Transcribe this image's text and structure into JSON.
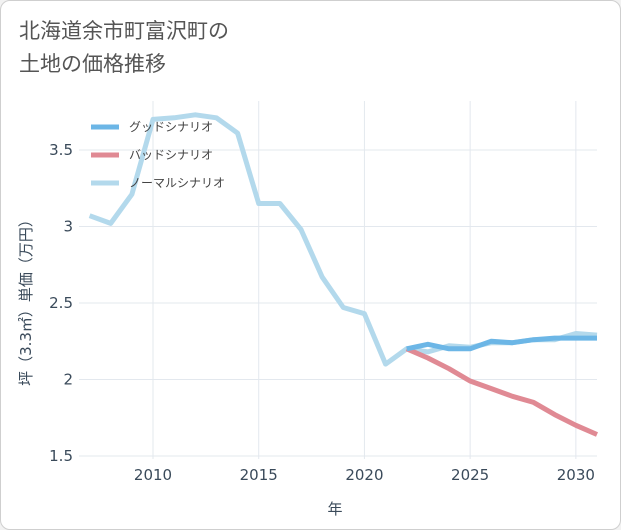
{
  "title_lines": [
    "北海道余市町富沢町の",
    "土地の価格推移"
  ],
  "chart_data": {
    "type": "line",
    "xlabel": "年",
    "ylabel": "坪（3.3㎡）単価（万円）",
    "xlim": [
      2006.5,
      2031
    ],
    "ylim": [
      1.48,
      3.82
    ],
    "xticks": [
      2010,
      2015,
      2020,
      2025,
      2030
    ],
    "xtick_labels": [
      "2010",
      "2015",
      "2020",
      "2025",
      "2030"
    ],
    "yticks": [
      1.5,
      2,
      2.5,
      3,
      3.5
    ],
    "ytick_labels": [
      "1.5",
      "2",
      "2.5",
      "3",
      "3.5"
    ],
    "grid": true,
    "legend_position": "top-left",
    "series": [
      {
        "name": "グッドシナリオ",
        "color": "#6cb6e6",
        "x": [
          2022,
          2023,
          2024,
          2025,
          2026,
          2027,
          2028,
          2029,
          2030,
          2031
        ],
        "values": [
          2.2,
          2.23,
          2.2,
          2.2,
          2.25,
          2.24,
          2.26,
          2.27,
          2.27,
          2.27
        ]
      },
      {
        "name": "バッドシナリオ",
        "color": "#e08a94",
        "x": [
          2022,
          2023,
          2024,
          2025,
          2026,
          2027,
          2028,
          2029,
          2030,
          2031
        ],
        "values": [
          2.2,
          2.14,
          2.07,
          1.99,
          1.94,
          1.89,
          1.85,
          1.77,
          1.7,
          1.64
        ]
      },
      {
        "name": "ノーマルシナリオ",
        "color": "#b3d9ec",
        "x": [
          2007,
          2008,
          2009,
          2010,
          2011,
          2012,
          2013,
          2014,
          2015,
          2016,
          2017,
          2018,
          2019,
          2020,
          2021,
          2022,
          2023,
          2024,
          2025,
          2026,
          2027,
          2028,
          2029,
          2030,
          2031
        ],
        "values": [
          3.07,
          3.02,
          3.21,
          3.7,
          3.71,
          3.73,
          3.71,
          3.61,
          3.15,
          3.15,
          2.98,
          2.67,
          2.47,
          2.43,
          2.1,
          2.2,
          2.18,
          2.22,
          2.21,
          2.24,
          2.24,
          2.26,
          2.26,
          2.3,
          2.29
        ]
      }
    ]
  }
}
